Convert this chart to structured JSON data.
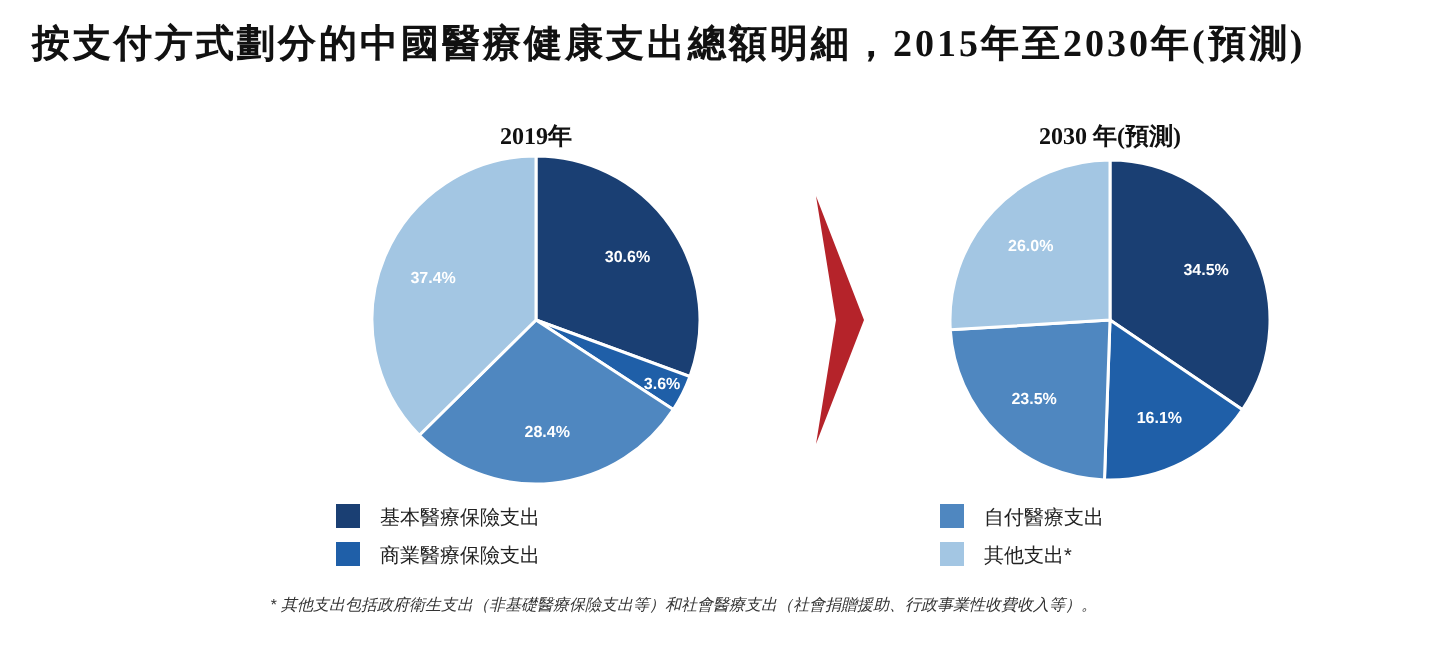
{
  "chart_data": [
    {
      "type": "other",
      "title": "按支付方式劃分的中國醫療健康支出總額明細，2015年至2030年(預測)"
    },
    {
      "type": "pie",
      "title": "2019年",
      "categories": [
        "基本醫療保險支出",
        "商業醫療保險支出",
        "自付醫療支出",
        "其他支出*"
      ],
      "values": [
        30.6,
        3.6,
        28.4,
        37.4
      ],
      "value_labels": [
        "30.6%",
        "3.6%",
        "28.4%",
        "37.4%"
      ],
      "colors": [
        "#1a3f73",
        "#1f5fa8",
        "#4f87c0",
        "#a3c6e3"
      ],
      "legend": "bottom"
    },
    {
      "type": "pie",
      "title": "2030 年(預測)",
      "categories": [
        null,
        null,
        null,
        null
      ],
      "values": [
        34.5,
        16.1,
        23.5,
        26.0
      ],
      "value_labels": [
        "34.5%",
        "16.1%",
        "23.5%",
        "26.0%"
      ],
      "colors": [
        "#1a3f73",
        "#1f5fa8",
        "#4f87c0",
        "#a3c6e3"
      ]
    },
    {
      "type": "other",
      "annotations": [
        "* 其他支出包括政府衛生支出（非基礎醫療保險支出等）和社會醫療支出（社會捐贈援助、行政事業性收費收入等）。"
      ]
    }
  ]
}
